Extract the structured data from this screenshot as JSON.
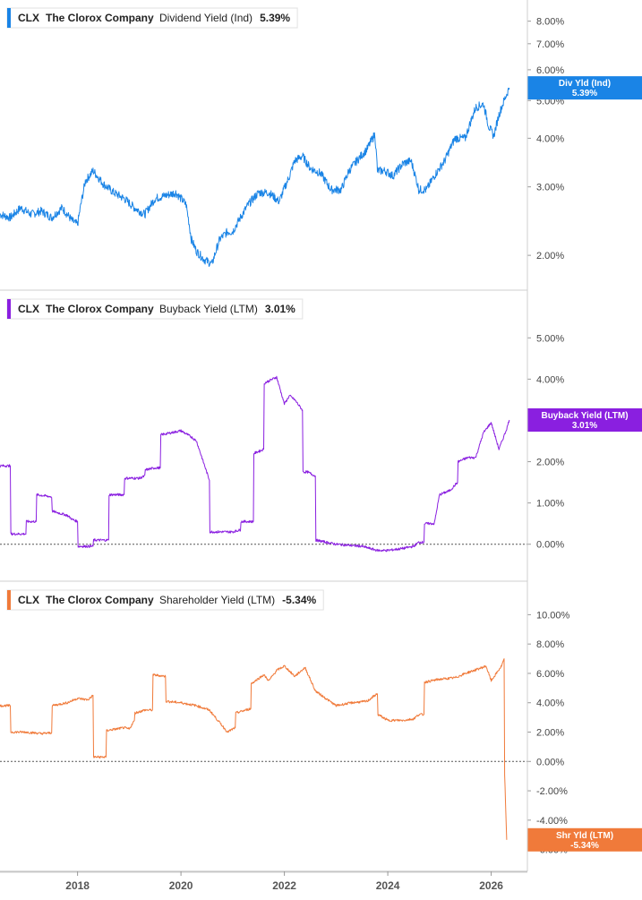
{
  "chart_data": [
    {
      "type": "line",
      "ticker": "CLX",
      "company": "The Clorox Company",
      "metric": "Dividend Yield (Ind)",
      "current_value": "5.39%",
      "tag_label": "Div Yld (Ind)",
      "tag_value": "5.39%",
      "color": "#1a84e6",
      "scale": "log",
      "ylim": [
        1.8,
        8.6
      ],
      "yticks": [
        {
          "v": 2,
          "label": "2.00%"
        },
        {
          "v": 3,
          "label": "3.00%"
        },
        {
          "v": 4,
          "label": "4.00%"
        },
        {
          "v": 5,
          "label": "5.00%"
        },
        {
          "v": 6,
          "label": "6.00%"
        },
        {
          "v": 7,
          "label": "7.00%"
        },
        {
          "v": 8,
          "label": "8.00%"
        }
      ],
      "zero_line": false,
      "x": [
        2016.5,
        2016.7,
        2016.9,
        2017.1,
        2017.3,
        2017.5,
        2017.7,
        2017.9,
        2018.0,
        2018.15,
        2018.3,
        2018.5,
        2018.7,
        2018.9,
        2019.1,
        2019.3,
        2019.5,
        2019.7,
        2019.9,
        2020.1,
        2020.2,
        2020.3,
        2020.45,
        2020.6,
        2020.75,
        2020.9,
        2021.0,
        2021.15,
        2021.3,
        2021.5,
        2021.7,
        2021.9,
        2022.1,
        2022.2,
        2022.35,
        2022.5,
        2022.7,
        2022.9,
        2023.1,
        2023.25,
        2023.4,
        2023.6,
        2023.75,
        2023.8,
        2023.95,
        2024.1,
        2024.3,
        2024.45,
        2024.6,
        2024.75,
        2024.9,
        2025.1,
        2025.3,
        2025.5,
        2025.7,
        2025.85,
        2025.95,
        2026.05,
        2026.15,
        2026.25,
        2026.35
      ],
      "values": [
        2.55,
        2.5,
        2.65,
        2.55,
        2.6,
        2.5,
        2.65,
        2.45,
        2.4,
        3.1,
        3.3,
        3.05,
        2.9,
        2.8,
        2.65,
        2.55,
        2.8,
        2.85,
        2.9,
        2.7,
        2.2,
        2.05,
        1.95,
        1.9,
        2.2,
        2.3,
        2.3,
        2.5,
        2.7,
        2.9,
        2.9,
        2.75,
        3.2,
        3.5,
        3.6,
        3.35,
        3.25,
        2.95,
        2.95,
        3.3,
        3.5,
        3.75,
        4.1,
        3.3,
        3.3,
        3.2,
        3.45,
        3.5,
        2.95,
        2.95,
        3.2,
        3.5,
        4.0,
        4.0,
        4.8,
        4.9,
        4.3,
        4.05,
        4.6,
        5.0,
        5.39
      ]
    },
    {
      "type": "line",
      "ticker": "CLX",
      "company": "The Clorox Company",
      "metric": "Buyback Yield (LTM)",
      "current_value": "3.01%",
      "tag_label": "Buyback Yield (LTM)",
      "tag_value": "3.01%",
      "color": "#8a1fe0",
      "scale": "linear",
      "ylim": [
        -0.7,
        5.7
      ],
      "yticks": [
        {
          "v": 0,
          "label": "0.00%"
        },
        {
          "v": 1,
          "label": "1.00%"
        },
        {
          "v": 2,
          "label": "2.00%"
        },
        {
          "v": 3,
          "label": "3.00%"
        },
        {
          "v": 4,
          "label": "4.00%"
        },
        {
          "v": 5,
          "label": "5.00%"
        }
      ],
      "zero_line": true,
      "x": [
        2016.5,
        2016.7,
        2016.71,
        2017.0,
        2017.01,
        2017.2,
        2017.21,
        2017.5,
        2017.51,
        2017.8,
        2017.9,
        2018.0,
        2018.01,
        2018.3,
        2018.31,
        2018.6,
        2018.61,
        2018.9,
        2018.91,
        2019.2,
        2019.3,
        2019.31,
        2019.5,
        2019.6,
        2019.61,
        2020.0,
        2020.2,
        2020.3,
        2020.55,
        2020.56,
        2021.0,
        2021.15,
        2021.16,
        2021.4,
        2021.41,
        2021.6,
        2021.61,
        2021.85,
        2022.0,
        2022.1,
        2022.2,
        2022.35,
        2022.36,
        2022.45,
        2022.6,
        2022.61,
        2022.8,
        2023.0,
        2023.5,
        2023.8,
        2024.0,
        2024.3,
        2024.5,
        2024.6,
        2024.7,
        2024.71,
        2024.9,
        2025.0,
        2025.2,
        2025.35,
        2025.36,
        2025.55,
        2025.7,
        2025.85,
        2026.0,
        2026.15,
        2026.3,
        2026.35
      ],
      "values": [
        1.9,
        1.9,
        0.25,
        0.25,
        0.55,
        0.55,
        1.2,
        1.15,
        0.8,
        0.7,
        0.6,
        0.55,
        -0.05,
        -0.05,
        0.1,
        0.1,
        1.2,
        1.2,
        1.6,
        1.6,
        1.65,
        1.8,
        1.85,
        1.85,
        2.65,
        2.75,
        2.6,
        2.5,
        1.55,
        0.3,
        0.3,
        0.35,
        0.55,
        0.55,
        2.2,
        2.3,
        3.9,
        4.05,
        3.4,
        3.6,
        3.5,
        3.25,
        1.75,
        1.75,
        1.65,
        0.1,
        0.05,
        0.0,
        -0.05,
        -0.15,
        -0.15,
        -0.1,
        -0.05,
        0.05,
        0.05,
        0.5,
        0.5,
        1.2,
        1.3,
        1.5,
        2.0,
        2.1,
        2.1,
        2.7,
        2.95,
        2.3,
        2.8,
        3.01
      ]
    },
    {
      "type": "line",
      "ticker": "CLX",
      "company": "The Clorox Company",
      "metric": "Shareholder Yield (LTM)",
      "current_value": "-5.34%",
      "tag_label": "Shr Yld (LTM)",
      "tag_value": "-5.34%",
      "color": "#f07a3a",
      "scale": "linear",
      "ylim": [
        -7.0,
        11.0
      ],
      "yticks": [
        {
          "v": -6,
          "label": "-6.00%"
        },
        {
          "v": -4,
          "label": "-4.00%"
        },
        {
          "v": -2,
          "label": "-2.00%"
        },
        {
          "v": 0,
          "label": "0.00%"
        },
        {
          "v": 2,
          "label": "2.00%"
        },
        {
          "v": 4,
          "label": "4.00%"
        },
        {
          "v": 6,
          "label": "6.00%"
        },
        {
          "v": 8,
          "label": "8.00%"
        },
        {
          "v": 10,
          "label": "10.00%"
        }
      ],
      "zero_line": true,
      "x": [
        2016.5,
        2016.7,
        2016.71,
        2017.0,
        2017.3,
        2017.5,
        2017.51,
        2017.8,
        2018.0,
        2018.2,
        2018.3,
        2018.31,
        2018.55,
        2018.56,
        2018.9,
        2019.0,
        2019.1,
        2019.11,
        2019.3,
        2019.45,
        2019.46,
        2019.7,
        2019.71,
        2020.0,
        2020.3,
        2020.55,
        2020.9,
        2021.05,
        2021.06,
        2021.35,
        2021.36,
        2021.6,
        2021.7,
        2021.85,
        2022.0,
        2022.2,
        2022.3,
        2022.4,
        2022.6,
        2022.8,
        2023.0,
        2023.3,
        2023.6,
        2023.75,
        2023.8,
        2023.81,
        2024.0,
        2024.3,
        2024.5,
        2024.6,
        2024.7,
        2024.71,
        2025.0,
        2025.3,
        2025.5,
        2025.75,
        2025.9,
        2026.0,
        2026.1,
        2026.2,
        2026.25,
        2026.26,
        2026.3
      ],
      "values": [
        3.8,
        3.8,
        2.0,
        2.0,
        1.9,
        1.95,
        3.8,
        4.0,
        4.3,
        4.2,
        4.5,
        0.3,
        0.3,
        2.1,
        2.3,
        2.2,
        2.8,
        3.3,
        3.5,
        3.5,
        5.9,
        5.8,
        4.1,
        4.0,
        3.8,
        3.5,
        2.0,
        2.3,
        3.3,
        3.6,
        5.3,
        5.9,
        5.5,
        6.2,
        6.5,
        5.8,
        6.1,
        6.4,
        4.8,
        4.3,
        3.8,
        4.0,
        4.1,
        4.5,
        4.6,
        3.2,
        2.8,
        2.8,
        2.9,
        3.2,
        3.2,
        5.4,
        5.6,
        5.7,
        6.0,
        6.3,
        6.5,
        5.5,
        6.0,
        6.5,
        7.0,
        -1.0,
        -5.34
      ]
    }
  ],
  "x_axis": {
    "ticks": [
      {
        "v": 2018,
        "label": "2018"
      },
      {
        "v": 2020,
        "label": "2020"
      },
      {
        "v": 2022,
        "label": "2022"
      },
      {
        "v": 2024,
        "label": "2024"
      },
      {
        "v": 2026,
        "label": "2026"
      }
    ],
    "xlim": [
      2016.5,
      2026.7
    ]
  }
}
